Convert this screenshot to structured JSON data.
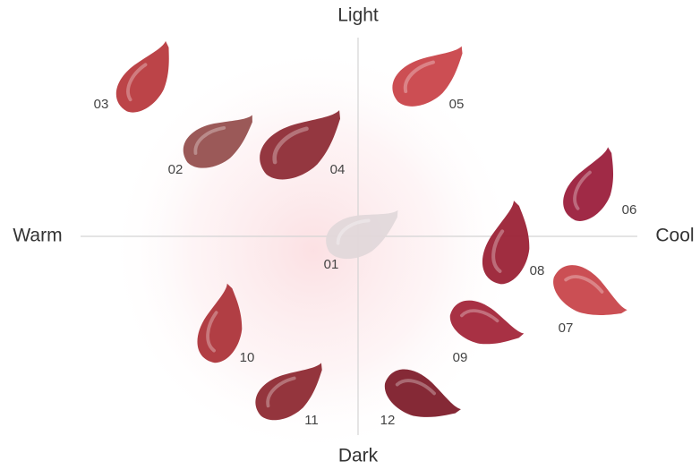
{
  "axes": {
    "top": "Light",
    "bottom": "Dark",
    "left": "Warm",
    "right": "Cool"
  },
  "swatches": [
    {
      "label": "01"
    },
    {
      "label": "02"
    },
    {
      "label": "03"
    },
    {
      "label": "04"
    },
    {
      "label": "05"
    },
    {
      "label": "06"
    },
    {
      "label": "07"
    },
    {
      "label": "08"
    },
    {
      "label": "09"
    },
    {
      "label": "10"
    },
    {
      "label": "11"
    },
    {
      "label": "12"
    }
  ]
}
